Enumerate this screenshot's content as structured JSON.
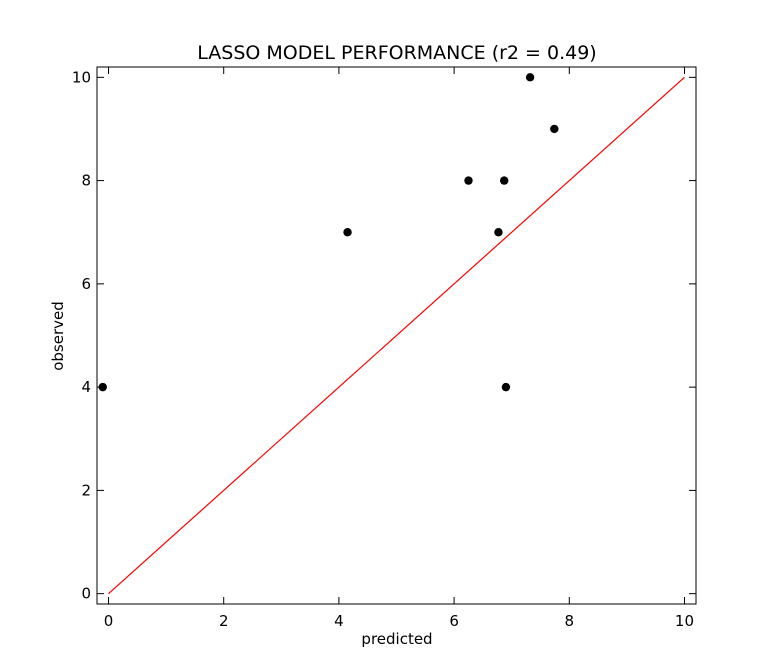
{
  "chart_data": {
    "type": "scatter",
    "title": "LASSO MODEL PERFORMANCE (r2 = 0.49)",
    "xlabel": "predicted",
    "ylabel": "observed",
    "xlim": [
      -0.2,
      10.2
    ],
    "ylim": [
      -0.2,
      10.2
    ],
    "xticks": [
      0,
      2,
      4,
      6,
      8,
      10
    ],
    "yticks": [
      0,
      2,
      4,
      6,
      8,
      10
    ],
    "grid": false,
    "points": [
      {
        "x": -0.1,
        "y": 4
      },
      {
        "x": 4.15,
        "y": 7
      },
      {
        "x": 6.25,
        "y": 8
      },
      {
        "x": 6.77,
        "y": 7
      },
      {
        "x": 6.87,
        "y": 8
      },
      {
        "x": 6.9,
        "y": 4
      },
      {
        "x": 7.32,
        "y": 10
      },
      {
        "x": 7.74,
        "y": 9
      }
    ],
    "reference_line": {
      "x": [
        0,
        10
      ],
      "y": [
        0,
        10
      ],
      "color": "#ff0000"
    },
    "point_color": "#000000"
  }
}
